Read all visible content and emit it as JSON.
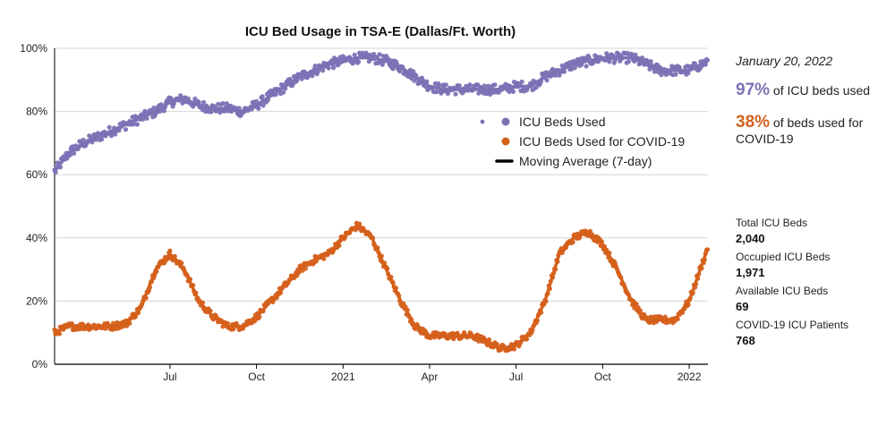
{
  "chart_data": {
    "type": "scatter",
    "title": "ICU Bed Usage in TSA-E (Dallas/Ft. Worth)",
    "xlabel": "",
    "ylabel": "",
    "ylim": [
      0,
      100
    ],
    "y_ticks": [
      "0%",
      "20%",
      "40%",
      "60%",
      "80%",
      "100%"
    ],
    "x_ticks": [
      "Jul",
      "Oct",
      "2021",
      "Apr",
      "Jul",
      "Oct",
      "2022"
    ],
    "x_tick_months": [
      4,
      7,
      10,
      13,
      16,
      19,
      22
    ],
    "x_range_months": [
      0,
      22.65
    ],
    "legend_position": "center-right",
    "legend": [
      "ICU Beds Used",
      "ICU Beds Used for COVID-19",
      "Moving Average (7-day)"
    ],
    "series": [
      {
        "name": "ICU Beds Used",
        "color": "#7b72b5",
        "x_months": [
          0,
          0.5,
          1,
          1.5,
          2,
          2.5,
          3,
          3.5,
          4,
          4.5,
          5,
          5.5,
          6,
          6.5,
          7,
          7.5,
          8,
          8.5,
          9,
          9.5,
          10,
          10.5,
          11,
          11.5,
          12,
          12.5,
          13,
          13.5,
          14,
          14.5,
          15,
          15.5,
          16,
          16.5,
          17,
          17.5,
          18,
          18.5,
          19,
          19.5,
          20,
          20.5,
          21,
          21.5,
          22,
          22.65
        ],
        "values": [
          61,
          67,
          70,
          72,
          74,
          76,
          78,
          80,
          83,
          84,
          82,
          81,
          81,
          80,
          82,
          85,
          88,
          91,
          93,
          95,
          96,
          97,
          97,
          96,
          94,
          91,
          88,
          87,
          87,
          87,
          87,
          87,
          88,
          88,
          91,
          93,
          95,
          96,
          97,
          97,
          97,
          95,
          93,
          93,
          93,
          96
        ]
      },
      {
        "name": "ICU Beds Used for COVID-19",
        "color": "#d5601b",
        "x_months": [
          0,
          0.5,
          1,
          1.5,
          2,
          2.5,
          3,
          3.5,
          4,
          4.5,
          5,
          5.5,
          6,
          6.5,
          7,
          7.5,
          8,
          8.5,
          9,
          9.5,
          10,
          10.5,
          11,
          11.5,
          12,
          12.5,
          13,
          13.5,
          14,
          14.5,
          15,
          15.5,
          16,
          16.5,
          17,
          17.5,
          18,
          18.5,
          19,
          19.5,
          20,
          20.5,
          21,
          21.5,
          22,
          22.65
        ],
        "values": [
          10,
          12,
          12,
          12,
          12,
          13,
          18,
          30,
          35,
          30,
          20,
          15,
          12,
          12,
          15,
          20,
          25,
          30,
          33,
          35,
          40,
          44,
          40,
          30,
          20,
          12,
          9,
          9,
          9,
          9,
          7,
          5,
          6,
          10,
          20,
          35,
          40,
          42,
          38,
          30,
          20,
          14,
          14,
          14,
          20,
          37
        ]
      }
    ]
  },
  "side_panel": {
    "date": "January 20, 2022",
    "icu_pct": "97%",
    "icu_pct_text": "of ICU beds used",
    "covid_pct": "38%",
    "covid_pct_text": "of beds used for COVID-19",
    "stats": [
      {
        "label": "Total ICU Beds",
        "value": "2,040"
      },
      {
        "label": "Occupied ICU Beds",
        "value": "1,971"
      },
      {
        "label": "Available ICU Beds",
        "value": "69"
      },
      {
        "label": "COVID-19 ICU Patients",
        "value": "768"
      }
    ]
  },
  "colors": {
    "purple": "#7b72b5",
    "orange": "#d5601b",
    "line": "#000000"
  }
}
